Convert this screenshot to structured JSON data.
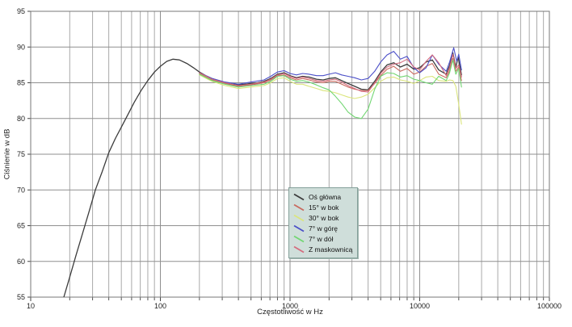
{
  "chart_data": {
    "type": "line",
    "title": "",
    "xlabel": "Częstotliwość w Hz",
    "ylabel": "Ciśnienie w dB",
    "x_scale": "log",
    "xlim": [
      10,
      100000
    ],
    "ylim": [
      55,
      95
    ],
    "x_ticks": [
      10,
      100,
      1000,
      10000,
      100000
    ],
    "x_tick_labels": [
      "10",
      "100",
      "1000",
      "10000",
      "100000"
    ],
    "y_ticks": [
      55,
      60,
      65,
      70,
      75,
      80,
      85,
      90,
      95
    ],
    "grid": {
      "show_minor_x": true,
      "major_color": "#8f8f8f",
      "minor_color": "#a9a9a9",
      "horizontal_color": "#8f8f8f",
      "border_color": "#777777"
    },
    "legend": {
      "position": "center-bottom",
      "background": "#cfdeda",
      "border": "#84a09a"
    },
    "series": [
      {
        "name": "Oś główna",
        "color": "#3c3c3c",
        "width": 1.3,
        "points": [
          [
            18,
            55
          ],
          [
            20,
            57.8
          ],
          [
            22.4,
            60.9
          ],
          [
            25,
            63.8
          ],
          [
            28,
            66.8
          ],
          [
            31.5,
            70
          ],
          [
            35.5,
            72.5
          ],
          [
            40,
            75.2
          ],
          [
            45,
            77.2
          ],
          [
            50,
            78.8
          ],
          [
            56,
            80.5
          ],
          [
            63,
            82.3
          ],
          [
            71,
            83.9
          ],
          [
            80,
            85.3
          ],
          [
            90,
            86.5
          ],
          [
            100,
            87.3
          ],
          [
            112,
            88
          ],
          [
            125,
            88.3
          ],
          [
            140,
            88.2
          ],
          [
            160,
            87.7
          ],
          [
            180,
            87.1
          ],
          [
            200,
            86.5
          ],
          [
            224,
            86
          ],
          [
            250,
            85.6
          ],
          [
            280,
            85.3
          ],
          [
            315,
            85
          ],
          [
            355,
            84.8
          ],
          [
            400,
            84.7
          ],
          [
            450,
            84.8
          ],
          [
            500,
            84.9
          ],
          [
            560,
            85
          ],
          [
            630,
            85.2
          ],
          [
            710,
            85.6
          ],
          [
            800,
            86.2
          ],
          [
            900,
            86.4
          ],
          [
            1000,
            86
          ],
          [
            1120,
            85.7
          ],
          [
            1250,
            85.9
          ],
          [
            1400,
            85.8
          ],
          [
            1600,
            85.5
          ],
          [
            1800,
            85.4
          ],
          [
            2000,
            85.6
          ],
          [
            2240,
            85.7
          ],
          [
            2500,
            85.3
          ],
          [
            2800,
            84.9
          ],
          [
            3150,
            84.5
          ],
          [
            3550,
            84.1
          ],
          [
            4000,
            84
          ],
          [
            4500,
            85.2
          ],
          [
            5000,
            86.5
          ],
          [
            5600,
            87.5
          ],
          [
            6300,
            87.8
          ],
          [
            7100,
            87.2
          ],
          [
            8000,
            87.6
          ],
          [
            9000,
            86.9
          ],
          [
            10000,
            87.1
          ],
          [
            11200,
            87.9
          ],
          [
            12500,
            88.2
          ],
          [
            14000,
            86.8
          ],
          [
            16000,
            86.2
          ],
          [
            17000,
            87.4
          ],
          [
            18000,
            89.2
          ],
          [
            19000,
            87.2
          ],
          [
            19800,
            88.6
          ],
          [
            21000,
            86.1
          ]
        ]
      },
      {
        "name": "15° w bok",
        "color": "#c96a5f",
        "width": 1.1,
        "points": [
          [
            200,
            86.3
          ],
          [
            250,
            85.4
          ],
          [
            315,
            84.9
          ],
          [
            400,
            84.5
          ],
          [
            500,
            84.7
          ],
          [
            630,
            85
          ],
          [
            710,
            85.4
          ],
          [
            800,
            86
          ],
          [
            900,
            86.1
          ],
          [
            1000,
            85.7
          ],
          [
            1120,
            85.4
          ],
          [
            1250,
            85.6
          ],
          [
            1400,
            85.4
          ],
          [
            1600,
            85.1
          ],
          [
            1800,
            85
          ],
          [
            2000,
            85.2
          ],
          [
            2240,
            85.2
          ],
          [
            2500,
            84.8
          ],
          [
            2800,
            84.4
          ],
          [
            3150,
            84.1
          ],
          [
            3550,
            83.9
          ],
          [
            4000,
            83.9
          ],
          [
            4500,
            84.9
          ],
          [
            5000,
            86
          ],
          [
            5600,
            86.9
          ],
          [
            6300,
            87.3
          ],
          [
            7100,
            86.6
          ],
          [
            8000,
            87
          ],
          [
            9000,
            86.2
          ],
          [
            10000,
            86.5
          ],
          [
            11200,
            87.3
          ],
          [
            12500,
            87.7
          ],
          [
            14000,
            86.2
          ],
          [
            16000,
            85.7
          ],
          [
            17000,
            86.7
          ],
          [
            18000,
            88.4
          ],
          [
            19000,
            86.6
          ],
          [
            20000,
            87.2
          ],
          [
            21000,
            85.3
          ]
        ]
      },
      {
        "name": "30° w bok",
        "color": "#dbe57d",
        "width": 1.1,
        "points": [
          [
            200,
            86.1
          ],
          [
            250,
            85.2
          ],
          [
            315,
            84.6
          ],
          [
            400,
            84.2
          ],
          [
            500,
            84.4
          ],
          [
            630,
            84.6
          ],
          [
            710,
            85
          ],
          [
            800,
            85.6
          ],
          [
            900,
            85.7
          ],
          [
            1000,
            85.2
          ],
          [
            1120,
            84.8
          ],
          [
            1250,
            84.8
          ],
          [
            1400,
            84.5
          ],
          [
            1600,
            84.2
          ],
          [
            1800,
            83.9
          ],
          [
            2000,
            83.8
          ],
          [
            2240,
            83.6
          ],
          [
            2500,
            83.3
          ],
          [
            2800,
            83
          ],
          [
            3150,
            82.8
          ],
          [
            3550,
            83
          ],
          [
            4000,
            83.4
          ],
          [
            4500,
            84.3
          ],
          [
            5000,
            85.2
          ],
          [
            5600,
            85.7
          ],
          [
            6300,
            85.8
          ],
          [
            7100,
            85.4
          ],
          [
            8000,
            85.2
          ],
          [
            9000,
            84.9
          ],
          [
            10000,
            85.3
          ],
          [
            11200,
            85.8
          ],
          [
            12500,
            85.9
          ],
          [
            14000,
            85.3
          ],
          [
            16000,
            85.2
          ],
          [
            17000,
            85.4
          ],
          [
            18000,
            85.3
          ],
          [
            19000,
            84.5
          ],
          [
            20000,
            82
          ],
          [
            21000,
            79.2
          ]
        ]
      },
      {
        "name": "7° w górę",
        "color": "#4b4fc8",
        "width": 1.1,
        "points": [
          [
            200,
            86.4
          ],
          [
            250,
            85.6
          ],
          [
            315,
            85.1
          ],
          [
            400,
            84.8
          ],
          [
            500,
            85.1
          ],
          [
            630,
            85.4
          ],
          [
            710,
            85.9
          ],
          [
            800,
            86.5
          ],
          [
            900,
            86.7
          ],
          [
            1000,
            86.3
          ],
          [
            1120,
            86.1
          ],
          [
            1250,
            86.3
          ],
          [
            1400,
            86.2
          ],
          [
            1600,
            86
          ],
          [
            1800,
            86
          ],
          [
            2000,
            86.2
          ],
          [
            2240,
            86.4
          ],
          [
            2500,
            86.1
          ],
          [
            2800,
            85.9
          ],
          [
            3150,
            85.7
          ],
          [
            3550,
            85.4
          ],
          [
            4000,
            85.6
          ],
          [
            4500,
            86.6
          ],
          [
            5000,
            87.9
          ],
          [
            5600,
            88.9
          ],
          [
            6300,
            89.4
          ],
          [
            7100,
            88.3
          ],
          [
            8000,
            88.7
          ],
          [
            9000,
            87.1
          ],
          [
            10000,
            86.4
          ],
          [
            11200,
            87.1
          ],
          [
            12500,
            88.9
          ],
          [
            14000,
            87.6
          ],
          [
            16000,
            86.6
          ],
          [
            17000,
            87.9
          ],
          [
            18300,
            89.9
          ],
          [
            19300,
            88
          ],
          [
            20000,
            89
          ],
          [
            21000,
            86.8
          ]
        ]
      },
      {
        "name": "7° w dół",
        "color": "#72d672",
        "width": 1.1,
        "points": [
          [
            200,
            86.2
          ],
          [
            250,
            85.3
          ],
          [
            315,
            84.8
          ],
          [
            400,
            84.4
          ],
          [
            500,
            84.6
          ],
          [
            630,
            84.8
          ],
          [
            710,
            85.2
          ],
          [
            800,
            85.9
          ],
          [
            900,
            86
          ],
          [
            1000,
            85.5
          ],
          [
            1120,
            85.2
          ],
          [
            1250,
            85.3
          ],
          [
            1400,
            85.1
          ],
          [
            1600,
            84.7
          ],
          [
            1800,
            84.3
          ],
          [
            2000,
            84
          ],
          [
            2240,
            83.1
          ],
          [
            2500,
            82.1
          ],
          [
            2800,
            80.9
          ],
          [
            3150,
            80.2
          ],
          [
            3550,
            80
          ],
          [
            4000,
            81.3
          ],
          [
            4500,
            84.1
          ],
          [
            5000,
            85.9
          ],
          [
            5600,
            86.4
          ],
          [
            6300,
            86.3
          ],
          [
            7100,
            85.8
          ],
          [
            8000,
            86
          ],
          [
            9000,
            85.5
          ],
          [
            10000,
            85.3
          ],
          [
            11200,
            85
          ],
          [
            12500,
            84.8
          ],
          [
            14000,
            85.9
          ],
          [
            16000,
            85.3
          ],
          [
            17000,
            86.4
          ],
          [
            18000,
            88.2
          ],
          [
            19000,
            86.2
          ],
          [
            20000,
            87
          ],
          [
            21000,
            84.4
          ]
        ]
      },
      {
        "name": "Z maskownicą",
        "color": "#d56b7e",
        "width": 1.1,
        "points": [
          [
            200,
            86.4
          ],
          [
            250,
            85.5
          ],
          [
            315,
            85
          ],
          [
            400,
            84.6
          ],
          [
            500,
            84.8
          ],
          [
            630,
            85.1
          ],
          [
            710,
            85.5
          ],
          [
            800,
            86.1
          ],
          [
            900,
            86.3
          ],
          [
            1000,
            85.9
          ],
          [
            1120,
            85.6
          ],
          [
            1250,
            85.8
          ],
          [
            1400,
            85.6
          ],
          [
            1600,
            85.3
          ],
          [
            1800,
            85.2
          ],
          [
            2000,
            85.4
          ],
          [
            2240,
            85.5
          ],
          [
            2500,
            85.1
          ],
          [
            2800,
            84.6
          ],
          [
            3150,
            84.2
          ],
          [
            3550,
            83.8
          ],
          [
            4000,
            83.7
          ],
          [
            4500,
            85
          ],
          [
            5000,
            86.3
          ],
          [
            5600,
            87.2
          ],
          [
            6300,
            87.6
          ],
          [
            7100,
            87.8
          ],
          [
            8000,
            88.3
          ],
          [
            9000,
            87.2
          ],
          [
            10000,
            86.8
          ],
          [
            11200,
            88
          ],
          [
            12500,
            88.9
          ],
          [
            14000,
            87.8
          ],
          [
            16000,
            86
          ],
          [
            17000,
            87.1
          ],
          [
            18000,
            89
          ],
          [
            19000,
            87
          ],
          [
            20000,
            87.5
          ],
          [
            21000,
            85.8
          ]
        ]
      }
    ]
  }
}
